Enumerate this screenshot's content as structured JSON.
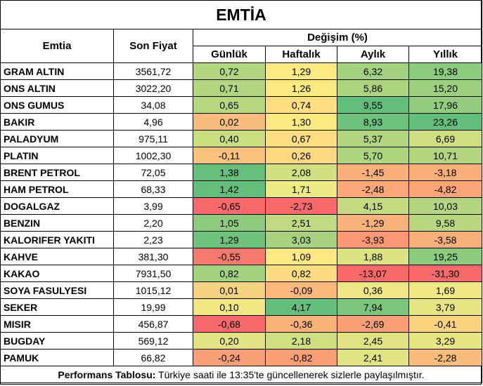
{
  "title": "EMTİA",
  "headers": {
    "commodity": "Emtia",
    "last_price": "Son Fiyat",
    "change_group": "Değişim (%)",
    "daily": "Günlük",
    "weekly": "Haftalık",
    "monthly": "Aylık",
    "yearly": "Yıllık"
  },
  "rows": [
    {
      "name": "GRAM ALTIN",
      "price": "3561,72",
      "daily": "0,72",
      "weekly": "1,29",
      "monthly": "6,32",
      "yearly": "19,38"
    },
    {
      "name": "ONS ALTIN",
      "price": "3022,20",
      "daily": "0,71",
      "weekly": "1,26",
      "monthly": "5,86",
      "yearly": "15,20"
    },
    {
      "name": "ONS GUMUS",
      "price": "34,08",
      "daily": "0,65",
      "weekly": "0,74",
      "monthly": "9,55",
      "yearly": "17,96"
    },
    {
      "name": "BAKIR",
      "price": "4,96",
      "daily": "0,02",
      "weekly": "1,30",
      "monthly": "8,93",
      "yearly": "23,26"
    },
    {
      "name": "PALADYUM",
      "price": "975,11",
      "daily": "0,40",
      "weekly": "0,67",
      "monthly": "5,37",
      "yearly": "6,69"
    },
    {
      "name": "PLATIN",
      "price": "1002,30",
      "daily": "-0,11",
      "weekly": "0,26",
      "monthly": "5,70",
      "yearly": "10,71"
    },
    {
      "name": "BRENT PETROL",
      "price": "72,05",
      "daily": "1,38",
      "weekly": "2,08",
      "monthly": "-1,45",
      "yearly": "-3,18"
    },
    {
      "name": "HAM PETROL",
      "price": "68,33",
      "daily": "1,42",
      "weekly": "1,71",
      "monthly": "-2,48",
      "yearly": "-4,82"
    },
    {
      "name": "DOGALGAZ",
      "price": "3,99",
      "daily": "-0,65",
      "weekly": "-2,73",
      "monthly": "4,15",
      "yearly": "10,03"
    },
    {
      "name": "BENZIN",
      "price": "2,20",
      "daily": "1,05",
      "weekly": "2,51",
      "monthly": "-1,29",
      "yearly": "9,58"
    },
    {
      "name": "KALORIFER YAKITI",
      "price": "2,23",
      "daily": "1,29",
      "weekly": "3,03",
      "monthly": "-3,93",
      "yearly": "-3,58"
    },
    {
      "name": "KAHVE",
      "price": "381,30",
      "daily": "-0,55",
      "weekly": "1,09",
      "monthly": "1,88",
      "yearly": "19,25"
    },
    {
      "name": "KAKAO",
      "price": "7931,50",
      "daily": "0,82",
      "weekly": "0,82",
      "monthly": "-13,07",
      "yearly": "-31,30"
    },
    {
      "name": "SOYA FASULYESI",
      "price": "1015,12",
      "daily": "0,01",
      "weekly": "-0,09",
      "monthly": "0,36",
      "yearly": "1,69"
    },
    {
      "name": "SEKER",
      "price": "19,99",
      "daily": "0,10",
      "weekly": "4,17",
      "monthly": "7,94",
      "yearly": "3,79"
    },
    {
      "name": "MISIR",
      "price": "456,87",
      "daily": "-0,68",
      "weekly": "-0,36",
      "monthly": "-2,69",
      "yearly": "-0,41"
    },
    {
      "name": "BUGDAY",
      "price": "569,12",
      "daily": "0,20",
      "weekly": "2,18",
      "monthly": "2,45",
      "yearly": "3,29"
    },
    {
      "name": "PAMUK",
      "price": "66,82",
      "daily": "-0,24",
      "weekly": "-0,82",
      "monthly": "2,41",
      "yearly": "-2,28"
    }
  ],
  "colors": {
    "daily": [
      "#b2d580",
      "#b2d580",
      "#b7d77f",
      "#f8bd7b",
      "#cadd7f",
      "#f8c27d",
      "#66bf7b",
      "#63be7b",
      "#f8696b",
      "#8ecb7e",
      "#6fc27c",
      "#f87a6f",
      "#a2d17f",
      "#f5d27f",
      "#f3e783",
      "#f8696b",
      "#e2e383",
      "#f89f76"
    ],
    "weekly": [
      "#fde983",
      "#fde983",
      "#fede81",
      "#fde983",
      "#fedc80",
      "#fed880",
      "#d3e081",
      "#ecea84",
      "#f8696b",
      "#c0da81",
      "#a8d27f",
      "#fee883",
      "#fddb80",
      "#fbb87a",
      "#63be7b",
      "#fab279",
      "#d2df81",
      "#fa9e75"
    ],
    "monthly": [
      "#a2d17f",
      "#acd47f",
      "#63be7b",
      "#6ec17c",
      "#b2d580",
      "#add47f",
      "#f9af78",
      "#fba777",
      "#c5d981",
      "#f8b179",
      "#fc9774",
      "#dde283",
      "#f8696b",
      "#f0e784",
      "#7bc57c",
      "#fa9f75",
      "#e1e383",
      "#e2e383"
    ],
    "yearly": [
      "#8ccc7e",
      "#9cd07f",
      "#95cd7e",
      "#63be7b",
      "#d0de81",
      "#b3d580",
      "#f8ae78",
      "#f9a577",
      "#b5d680",
      "#bad780",
      "#f8b079",
      "#8ccb7e",
      "#f8696b",
      "#f2e984",
      "#e5e583",
      "#fbd37f",
      "#e8e683",
      "#f9bc7b"
    ]
  },
  "footer": {
    "label": "Performans Tablosu:",
    "text": " Türkiye saati ile 13:35'te güncellenerek sizlerle paylaşılmıştır."
  }
}
